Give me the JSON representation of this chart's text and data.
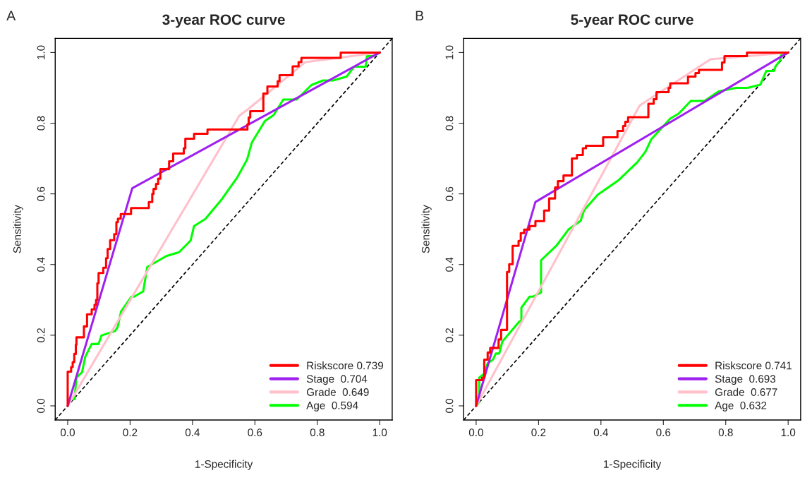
{
  "chart_data": [
    {
      "type": "line",
      "title": "3-year ROC curve",
      "xlabel": "1-Specificity",
      "ylabel": "Sensitivity",
      "annotations": [
        "A"
      ],
      "xlim": [
        -0.04,
        1.04
      ],
      "ylim": [
        -0.04,
        1.04
      ],
      "xticks": [
        {
          "value": 0,
          "label": "0.0"
        },
        {
          "value": 0.2,
          "label": "0.2"
        },
        {
          "value": 0.4,
          "label": "0.4"
        },
        {
          "value": 0.6,
          "label": "0.6"
        },
        {
          "value": 0.8,
          "label": "0.8"
        },
        {
          "value": 1,
          "label": "1.0"
        }
      ],
      "yticks": [
        {
          "value": 0,
          "label": "0.0"
        },
        {
          "value": 0.2,
          "label": "0.2"
        },
        {
          "value": 0.4,
          "label": "0.4"
        },
        {
          "value": 0.6,
          "label": "0.6"
        },
        {
          "value": 0.8,
          "label": "0.8"
        },
        {
          "value": 1,
          "label": "1.0"
        }
      ],
      "grid": false,
      "legend": "bottom right",
      "series": [
        {
          "type": "line",
          "color": "#000000",
          "line_style": "dashed",
          "x": [
            -0.04,
            1.04
          ],
          "values": [
            -0.04,
            1.04
          ]
        },
        {
          "type": "line",
          "name": "Age  0.594",
          "color": "#00ff00",
          "x": [
            0,
            0.011,
            0.022,
            0.028,
            0.046,
            0.056,
            0.063,
            0.077,
            0.099,
            0.108,
            0.152,
            0.16,
            0.171,
            0.204,
            0.213,
            0.242,
            0.255,
            0.316,
            0.357,
            0.394,
            0.405,
            0.441,
            0.494,
            0.543,
            0.575,
            0.59,
            0.632,
            0.66,
            0.691,
            0.734,
            0.781,
            0.818,
            0.851,
            0.894,
            0.918,
            0.955,
            0.959,
            0.981,
            1
          ],
          "values": [
            0,
            0.019,
            0.019,
            0.08,
            0.095,
            0.138,
            0.151,
            0.175,
            0.175,
            0.199,
            0.212,
            0.223,
            0.267,
            0.309,
            0.309,
            0.324,
            0.393,
            0.424,
            0.435,
            0.468,
            0.509,
            0.529,
            0.585,
            0.646,
            0.697,
            0.745,
            0.806,
            0.823,
            0.867,
            0.867,
            0.908,
            0.921,
            0.921,
            0.932,
            0.96,
            0.96,
            0.99,
            0.99,
            1
          ]
        },
        {
          "type": "line",
          "name": "Grade  0.649",
          "color": "#ffc0cb",
          "x": [
            0,
            0.55,
            0.58,
            0.762,
            1
          ],
          "values": [
            0,
            0.821,
            0.841,
            0.973,
            1
          ]
        },
        {
          "type": "line",
          "name": "Stage  0.704",
          "color": "#a020f0",
          "x": [
            0,
            0.207,
            1
          ],
          "values": [
            0,
            0.616,
            1
          ]
        },
        {
          "type": "step",
          "name": "Riskscore 0.739",
          "color": "#ff0000",
          "x": [
            0,
            0,
            0.011,
            0.016,
            0.021,
            0.026,
            0.028,
            0.052,
            0.062,
            0.077,
            0.086,
            0.091,
            0.095,
            0.099,
            0.114,
            0.123,
            0.128,
            0.136,
            0.149,
            0.156,
            0.161,
            0.17,
            0.203,
            0.26,
            0.271,
            0.275,
            0.283,
            0.29,
            0.297,
            0.325,
            0.338,
            0.372,
            0.377,
            0.405,
            0.448,
            0.576,
            0.58,
            0.585,
            0.627,
            0.627,
            0.64,
            0.673,
            0.679,
            0.721,
            0.721,
            0.74,
            0.749,
            0.875,
            1
          ],
          "values": [
            0,
            0.097,
            0.11,
            0.124,
            0.147,
            0.173,
            0.194,
            0.225,
            0.259,
            0.273,
            0.286,
            0.3,
            0.347,
            0.376,
            0.391,
            0.418,
            0.444,
            0.469,
            0.486,
            0.52,
            0.53,
            0.543,
            0.56,
            0.577,
            0.6,
            0.614,
            0.628,
            0.643,
            0.67,
            0.692,
            0.714,
            0.729,
            0.756,
            0.77,
            0.782,
            0.797,
            0.816,
            0.834,
            0.871,
            0.884,
            0.904,
            0.919,
            0.936,
            0.953,
            0.961,
            0.973,
            0.985,
            1,
            1
          ]
        }
      ]
    },
    {
      "type": "line",
      "title": "5-year ROC curve",
      "xlabel": "1-Specificity",
      "ylabel": "Sensitivity",
      "annotations": [
        "B"
      ],
      "xlim": [
        -0.04,
        1.04
      ],
      "ylim": [
        -0.04,
        1.04
      ],
      "xticks": [
        {
          "value": 0,
          "label": "0.0"
        },
        {
          "value": 0.2,
          "label": "0.2"
        },
        {
          "value": 0.4,
          "label": "0.4"
        },
        {
          "value": 0.6,
          "label": "0.6"
        },
        {
          "value": 0.8,
          "label": "0.8"
        },
        {
          "value": 1,
          "label": "1.0"
        }
      ],
      "yticks": [
        {
          "value": 0,
          "label": "0.0"
        },
        {
          "value": 0.2,
          "label": "0.2"
        },
        {
          "value": 0.4,
          "label": "0.4"
        },
        {
          "value": 0.6,
          "label": "0.6"
        },
        {
          "value": 0.8,
          "label": "0.8"
        },
        {
          "value": 1,
          "label": "1.0"
        }
      ],
      "grid": false,
      "legend": "bottom right",
      "series": [
        {
          "type": "line",
          "color": "#000000",
          "line_style": "dashed",
          "x": [
            -0.04,
            1.04
          ],
          "values": [
            -0.04,
            1.04
          ]
        },
        {
          "type": "line",
          "name": "Age  0.632",
          "color": "#00ff00",
          "x": [
            0,
            0.01,
            0.01,
            0.026,
            0.037,
            0.054,
            0.063,
            0.074,
            0.084,
            0.139,
            0.145,
            0.145,
            0.171,
            0.182,
            0.208,
            0.208,
            0.257,
            0.297,
            0.335,
            0.346,
            0.39,
            0.457,
            0.517,
            0.543,
            0.561,
            0.622,
            0.649,
            0.688,
            0.732,
            0.777,
            0.833,
            0.87,
            0.911,
            0.93,
            0.955,
            0.959,
            0.974,
            0.978,
            1
          ],
          "values": [
            0,
            0.012,
            0.08,
            0.091,
            0.121,
            0.131,
            0.148,
            0.148,
            0.182,
            0.239,
            0.239,
            0.278,
            0.309,
            0.309,
            0.321,
            0.412,
            0.453,
            0.5,
            0.524,
            0.554,
            0.598,
            0.639,
            0.69,
            0.72,
            0.754,
            0.813,
            0.827,
            0.863,
            0.863,
            0.89,
            0.9,
            0.9,
            0.909,
            0.948,
            0.948,
            0.96,
            0.977,
            0.995,
            1
          ]
        },
        {
          "type": "line",
          "name": "Grade  0.677",
          "color": "#ffc0cb",
          "x": [
            0,
            0.524,
            0.751,
            1
          ],
          "values": [
            0,
            0.85,
            0.981,
            1
          ]
        },
        {
          "type": "line",
          "name": "Stage  0.693",
          "color": "#a020f0",
          "x": [
            0,
            0.19,
            1
          ],
          "values": [
            0,
            0.577,
            1
          ]
        },
        {
          "type": "step",
          "name": "Riskscore 0.741",
          "color": "#ff0000",
          "x": [
            0,
            0,
            0.019,
            0.026,
            0.037,
            0.045,
            0.072,
            0.08,
            0.099,
            0.106,
            0.117,
            0.136,
            0.143,
            0.154,
            0.171,
            0.19,
            0.218,
            0.234,
            0.253,
            0.262,
            0.28,
            0.307,
            0.323,
            0.342,
            0.352,
            0.407,
            0.453,
            0.471,
            0.478,
            0.487,
            0.552,
            0.569,
            0.578,
            0.617,
            0.622,
            0.679,
            0.703,
            0.714,
            0.788,
            0.796,
            0.868,
            1
          ],
          "values": [
            0,
            0.073,
            0.08,
            0.131,
            0.151,
            0.164,
            0.188,
            0.215,
            0.379,
            0.401,
            0.453,
            0.467,
            0.489,
            0.499,
            0.509,
            0.523,
            0.553,
            0.587,
            0.618,
            0.636,
            0.652,
            0.7,
            0.71,
            0.729,
            0.736,
            0.76,
            0.778,
            0.792,
            0.804,
            0.817,
            0.855,
            0.868,
            0.888,
            0.9,
            0.913,
            0.932,
            0.942,
            0.951,
            0.972,
            0.99,
            1,
            1
          ]
        }
      ]
    }
  ]
}
